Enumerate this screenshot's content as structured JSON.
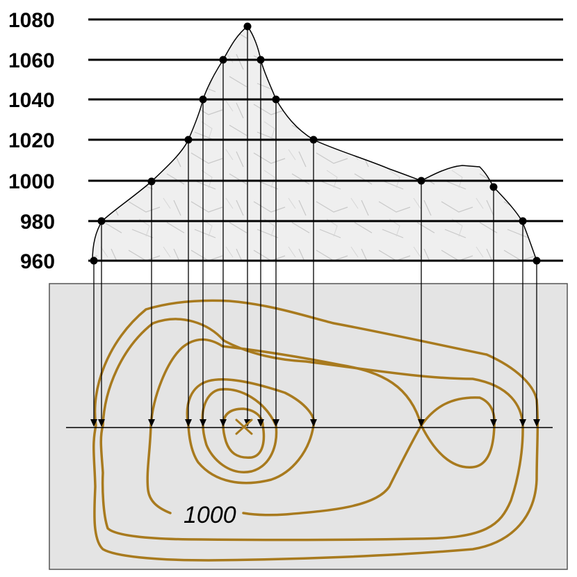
{
  "diagram": {
    "elevation_labels": [
      "1080",
      "1060",
      "1040",
      "1020",
      "1000",
      "980",
      "960"
    ],
    "contour_label": "1000",
    "colors": {
      "contour": "#a87a1e",
      "map_background": "#e4e4e4",
      "terrain_fill": "#eeeeee",
      "lines": "#000000"
    },
    "icons": [
      "summit-cross-icon"
    ]
  }
}
